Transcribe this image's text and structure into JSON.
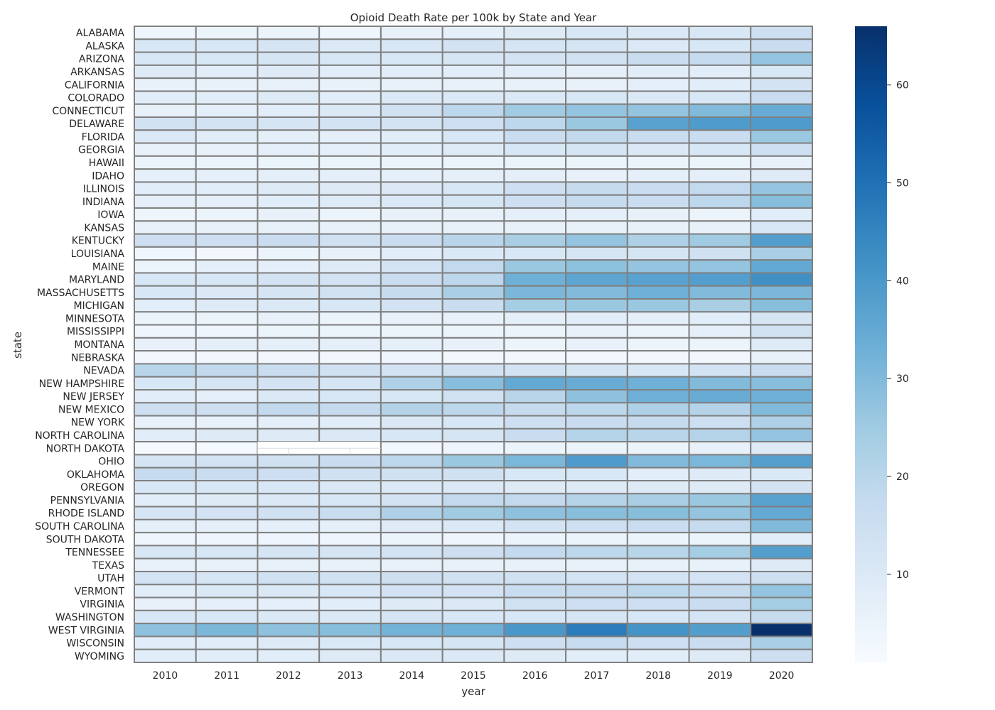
{
  "chart_data": {
    "type": "heatmap",
    "title": "Opioid Death Rate per 100k by State and Year",
    "xlabel": "year",
    "ylabel": "state",
    "x": [
      2010,
      2011,
      2012,
      2013,
      2014,
      2015,
      2016,
      2017,
      2018,
      2019,
      2020
    ],
    "y": [
      "ALABAMA",
      "ALASKA",
      "ARIZONA",
      "ARKANSAS",
      "CALIFORNIA",
      "COLORADO",
      "CONNECTICUT",
      "DELAWARE",
      "FLORIDA",
      "GEORGIA",
      "HAWAII",
      "IDAHO",
      "ILLINOIS",
      "INDIANA",
      "IOWA",
      "KANSAS",
      "KENTUCKY",
      "LOUISIANA",
      "MAINE",
      "MARYLAND",
      "MASSACHUSETTS",
      "MICHIGAN",
      "MINNESOTA",
      "MISSISSIPPI",
      "MONTANA",
      "NEBRASKA",
      "NEVADA",
      "NEW HAMPSHIRE",
      "NEW JERSEY",
      "NEW MEXICO",
      "NEW YORK",
      "NORTH CAROLINA",
      "NORTH DAKOTA",
      "OHIO",
      "OKLAHOMA",
      "OREGON",
      "PENNSYLVANIA",
      "RHODE ISLAND",
      "SOUTH CAROLINA",
      "SOUTH DAKOTA",
      "TENNESSEE",
      "TEXAS",
      "UTAH",
      "VERMONT",
      "VIRGINIA",
      "WASHINGTON",
      "WEST VIRGINIA",
      "WISCONSIN",
      "WYOMING"
    ],
    "values": [
      [
        4,
        5,
        5,
        4,
        6,
        7,
        9,
        11,
        10,
        11,
        15
      ],
      [
        11,
        11,
        12,
        10,
        11,
        13,
        12,
        12,
        10,
        11,
        16
      ],
      [
        11,
        11,
        12,
        11,
        11,
        12,
        13,
        14,
        16,
        17,
        27
      ],
      [
        9,
        8,
        9,
        8,
        8,
        8,
        8,
        7,
        8,
        8,
        11
      ],
      [
        6,
        6,
        6,
        6,
        6,
        6,
        6,
        6,
        7,
        8,
        13
      ],
      [
        8,
        8,
        9,
        8,
        10,
        10,
        10,
        11,
        10,
        11,
        16
      ],
      [
        6,
        7,
        8,
        10,
        14,
        19,
        25,
        27,
        27,
        30,
        34
      ],
      [
        14,
        13,
        12,
        13,
        13,
        15,
        19,
        26,
        37,
        39,
        39
      ],
      [
        10,
        8,
        7,
        7,
        8,
        11,
        16,
        18,
        16,
        16,
        26
      ],
      [
        6,
        6,
        7,
        7,
        8,
        9,
        11,
        12,
        10,
        11,
        15
      ],
      [
        5,
        5,
        5,
        5,
        5,
        5,
        5,
        5,
        5,
        5,
        6
      ],
      [
        7,
        7,
        7,
        7,
        7,
        7,
        7,
        6,
        7,
        7,
        9
      ],
      [
        8,
        8,
        9,
        9,
        10,
        11,
        15,
        17,
        16,
        18,
        27
      ],
      [
        7,
        7,
        8,
        9,
        10,
        12,
        15,
        17,
        16,
        19,
        29
      ],
      [
        4,
        5,
        6,
        5,
        6,
        6,
        7,
        7,
        6,
        5,
        8
      ],
      [
        6,
        6,
        6,
        6,
        6,
        6,
        6,
        6,
        6,
        6,
        11
      ],
      [
        15,
        15,
        16,
        14,
        16,
        20,
        23,
        27,
        22,
        25,
        38
      ],
      [
        4,
        3,
        5,
        6,
        8,
        10,
        11,
        12,
        12,
        14,
        23
      ],
      [
        5,
        7,
        7,
        9,
        13,
        18,
        26,
        28,
        27,
        27,
        35
      ],
      [
        11,
        11,
        13,
        13,
        16,
        19,
        33,
        36,
        37,
        38,
        42
      ],
      [
        11,
        10,
        12,
        14,
        17,
        23,
        31,
        30,
        33,
        30,
        31
      ],
      [
        8,
        9,
        10,
        11,
        13,
        16,
        24,
        26,
        26,
        23,
        29
      ],
      [
        5,
        5,
        6,
        5,
        6,
        6,
        7,
        8,
        7,
        8,
        12
      ],
      [
        4,
        4,
        5,
        5,
        5,
        5,
        5,
        6,
        5,
        7,
        14
      ],
      [
        6,
        7,
        7,
        7,
        7,
        6,
        5,
        6,
        5,
        5,
        9
      ],
      [
        3,
        3,
        3,
        3,
        4,
        3,
        3,
        3,
        3,
        3,
        6
      ],
      [
        20,
        18,
        16,
        14,
        13,
        14,
        13,
        12,
        11,
        13,
        16
      ],
      [
        11,
        12,
        13,
        12,
        22,
        29,
        35,
        34,
        33,
        30,
        29
      ],
      [
        8,
        7,
        10,
        11,
        11,
        14,
        20,
        28,
        33,
        34,
        33
      ],
      [
        15,
        15,
        18,
        17,
        21,
        19,
        17,
        19,
        22,
        21,
        30
      ],
      [
        6,
        6,
        7,
        8,
        10,
        11,
        15,
        16,
        17,
        15,
        22
      ],
      [
        8,
        9,
        9,
        10,
        11,
        12,
        16,
        21,
        20,
        21,
        27
      ],
      [
        2,
        2,
        2,
        2,
        3,
        4,
        5,
        5,
        5,
        6,
        9
      ],
      [
        12,
        13,
        14,
        16,
        19,
        26,
        31,
        39,
        30,
        31,
        38
      ],
      [
        17,
        16,
        15,
        14,
        14,
        14,
        11,
        11,
        8,
        9,
        10
      ],
      [
        11,
        11,
        11,
        10,
        10,
        10,
        9,
        9,
        9,
        9,
        13
      ],
      [
        8,
        9,
        10,
        11,
        13,
        18,
        18,
        21,
        23,
        26,
        37
      ],
      [
        12,
        13,
        14,
        16,
        22,
        25,
        28,
        29,
        29,
        27,
        35
      ],
      [
        7,
        7,
        7,
        7,
        9,
        10,
        13,
        15,
        16,
        17,
        30
      ],
      [
        4,
        4,
        4,
        4,
        5,
        4,
        5,
        5,
        5,
        5,
        8
      ],
      [
        11,
        11,
        12,
        12,
        13,
        15,
        18,
        19,
        20,
        24,
        38
      ],
      [
        6,
        6,
        6,
        6,
        6,
        6,
        6,
        6,
        6,
        6,
        9
      ],
      [
        13,
        12,
        14,
        14,
        15,
        14,
        14,
        13,
        13,
        13,
        15
      ],
      [
        8,
        10,
        10,
        11,
        13,
        13,
        16,
        17,
        19,
        17,
        27
      ],
      [
        6,
        7,
        7,
        8,
        9,
        10,
        14,
        15,
        15,
        16,
        24
      ],
      [
        11,
        11,
        10,
        10,
        12,
        11,
        11,
        12,
        11,
        12,
        17
      ],
      [
        28,
        31,
        28,
        29,
        32,
        33,
        40,
        47,
        41,
        38,
        66
      ],
      [
        8,
        8,
        9,
        10,
        11,
        12,
        15,
        17,
        15,
        16,
        23
      ],
      [
        8,
        8,
        8,
        9,
        10,
        10,
        9,
        8,
        8,
        9,
        15
      ]
    ],
    "missing": [
      [
        "NORTH DAKOTA",
        2012
      ],
      [
        "NORTH DAKOTA",
        2013
      ]
    ],
    "colorbar": {
      "colormap": "Blues",
      "vmin": 1,
      "vmax": 66,
      "ticks": [
        10,
        20,
        30,
        40,
        50,
        60
      ]
    },
    "colors": {
      "cell_border": "#808080",
      "missing_line": "#d9d9d9"
    },
    "grid": false,
    "legend": "colorbar-right"
  }
}
